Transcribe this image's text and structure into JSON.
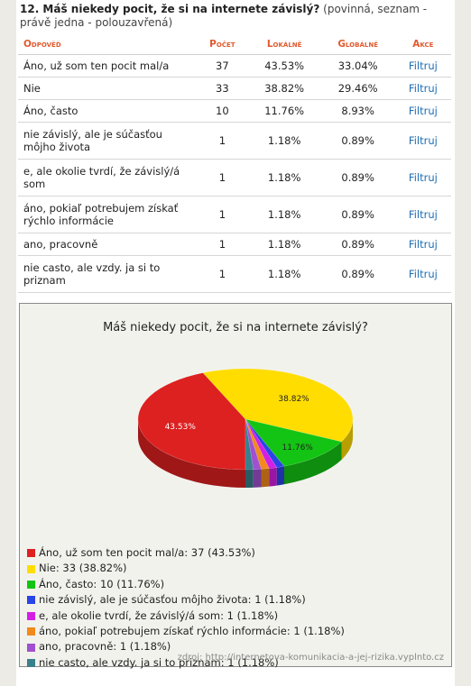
{
  "question": {
    "title": "12. Máš niekedy pocit, že si na internete závislý?",
    "meta": "(povinná, seznam - právě jedna - polouzavřená)"
  },
  "table": {
    "headers": [
      "Odpověď",
      "Počet",
      "Lokálně",
      "Globálně",
      "Akce"
    ],
    "rows": [
      {
        "answer": "Áno, už som ten pocit mal/a",
        "count": "37",
        "local": "43.53%",
        "global": "33.04%",
        "action": "Filtruj",
        "tall": false
      },
      {
        "answer": "Nie",
        "count": "33",
        "local": "38.82%",
        "global": "29.46%",
        "action": "Filtruj",
        "tall": false
      },
      {
        "answer": "Áno, často",
        "count": "10",
        "local": "11.76%",
        "global": "8.93%",
        "action": "Filtruj",
        "tall": false
      },
      {
        "answer": "nie závislý, ale je súčasťou môjho života",
        "count": "1",
        "local": "1.18%",
        "global": "0.89%",
        "action": "Filtruj",
        "tall": true
      },
      {
        "answer": "e, ale okolie tvrdí, že závislý/á som",
        "count": "1",
        "local": "1.18%",
        "global": "0.89%",
        "action": "Filtruj",
        "tall": true
      },
      {
        "answer": "áno, pokiaľ potrebujem získať rýchlo informácie",
        "count": "1",
        "local": "1.18%",
        "global": "0.89%",
        "action": "Filtruj",
        "tall": true
      },
      {
        "answer": "ano, pracovně",
        "count": "1",
        "local": "1.18%",
        "global": "0.89%",
        "action": "Filtruj",
        "tall": false
      },
      {
        "answer": "nie casto, ale vzdy. ja si to priznam",
        "count": "1",
        "local": "1.18%",
        "global": "0.89%",
        "action": "Filtruj",
        "tall": true
      }
    ]
  },
  "chart_data": {
    "type": "pie",
    "title": "Máš niekedy pocit, že si na internete závislý?",
    "legend_position": "bottom-left",
    "slices": [
      {
        "label": "Áno, už som ten pocit mal/a",
        "value": 37,
        "percent": 43.53,
        "percent_label": "43.53%",
        "legend": "Áno, už som ten pocit mal/a: 37 (43.53%)",
        "color": "#dd2020"
      },
      {
        "label": "Nie",
        "value": 33,
        "percent": 38.82,
        "percent_label": "38.82%",
        "legend": "Nie: 33 (38.82%)",
        "color": "#ffdd00"
      },
      {
        "label": "Áno, často",
        "value": 10,
        "percent": 11.76,
        "percent_label": "11.76%",
        "legend": "Áno, často: 10 (11.76%)",
        "color": "#14c414"
      },
      {
        "label": "nie závislý, ale je súčasťou môjho života",
        "value": 1,
        "percent": 1.18,
        "percent_label": "",
        "legend": "nie závislý, ale je súčasťou môjho života: 1 (1.18%)",
        "color": "#2b44e6"
      },
      {
        "label": "e, ale okolie tvrdí, že závislý/á som",
        "value": 1,
        "percent": 1.18,
        "percent_label": "",
        "legend": "e, ale okolie tvrdí, že závislý/á som: 1 (1.18%)",
        "color": "#d31fe3"
      },
      {
        "label": "áno, pokiaľ potrebujem získať rýchlo informácie",
        "value": 1,
        "percent": 1.18,
        "percent_label": "",
        "legend": "áno, pokiaľ potrebujem získať rýchlo informácie: 1 (1.18%)",
        "color": "#f28a1c"
      },
      {
        "label": "ano, pracovně",
        "value": 1,
        "percent": 1.18,
        "percent_label": "",
        "legend": "ano, pracovně: 1 (1.18%)",
        "color": "#a050d0"
      },
      {
        "label": "nie casto, ale vzdy. ja si to priznam",
        "value": 1,
        "percent": 1.18,
        "percent_label": "",
        "legend": "nie casto, ale vzdy. ja si to priznam: 1 (1.18%)",
        "color": "#3a7f8c"
      }
    ]
  },
  "source": "zdroj: http://internetova-komunikacia-a-jej-rizika.vyplnto.cz"
}
